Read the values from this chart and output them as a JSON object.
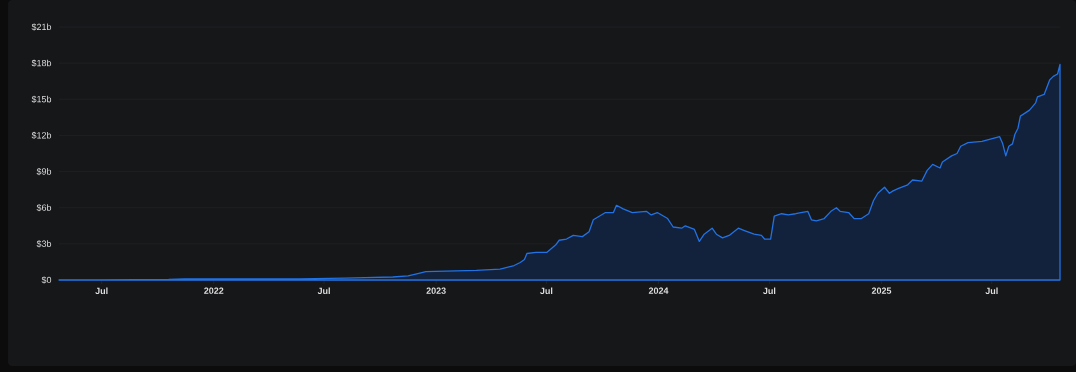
{
  "chart_data": {
    "type": "area",
    "x": [
      "2021-04-22",
      "2021-06-28",
      "2021-10-19",
      "2021-11-14",
      "2022-01-01",
      "2022-05-22",
      "2022-08-04",
      "2022-09-06",
      "2022-10-22",
      "2022-11-16",
      "2022-12-07",
      "2022-12-15",
      "2023-03-08",
      "2023-04-16",
      "2023-05-09",
      "2023-05-19",
      "2023-05-26",
      "2023-05-30",
      "2023-06-14",
      "2023-07-02",
      "2023-07-16",
      "2023-07-22",
      "2023-08-03",
      "2023-08-14",
      "2023-08-29",
      "2023-09-09",
      "2023-09-16",
      "2023-10-06",
      "2023-10-19",
      "2023-10-24",
      "2023-11-04",
      "2023-11-19",
      "2023-12-12",
      "2023-12-20",
      "2023-12-30",
      "2024-01-16",
      "2024-01-25",
      "2024-02-08",
      "2024-02-14",
      "2024-02-29",
      "2024-03-08",
      "2024-03-16",
      "2024-03-29",
      "2024-04-05",
      "2024-04-15",
      "2024-04-26",
      "2024-05-11",
      "2024-05-21",
      "2024-06-06",
      "2024-06-18",
      "2024-06-23",
      "2024-07-03",
      "2024-07-09",
      "2024-07-21",
      "2024-08-01",
      "2024-08-13",
      "2024-09-02",
      "2024-09-08",
      "2024-09-16",
      "2024-09-29",
      "2024-10-10",
      "2024-10-19",
      "2024-10-25",
      "2024-11-08",
      "2024-11-17",
      "2024-11-29",
      "2024-12-11",
      "2024-12-19",
      "2024-12-26",
      "2025-01-06",
      "2025-01-14",
      "2025-01-20",
      "2025-01-29",
      "2025-02-13",
      "2025-02-21",
      "2025-03-08",
      "2025-03-17",
      "2025-03-26",
      "2025-04-07",
      "2025-04-11",
      "2025-04-26",
      "2025-05-05",
      "2025-05-11",
      "2025-05-23",
      "2025-06-15",
      "2025-07-14",
      "2025-07-19",
      "2025-07-24",
      "2025-07-29",
      "2025-08-04",
      "2025-08-08",
      "2025-08-13",
      "2025-08-17",
      "2025-09-01",
      "2025-09-11",
      "2025-09-14",
      "2025-09-25",
      "2025-10-04",
      "2025-10-10",
      "2025-10-17",
      "2025-10-21"
    ],
    "values": [
      0,
      0,
      0.05,
      0.1,
      0.1,
      0.1,
      0.15,
      0.2,
      0.25,
      0.35,
      0.6,
      0.7,
      0.8,
      0.9,
      1.2,
      1.45,
      1.7,
      2.2,
      2.3,
      2.3,
      2.9,
      3.3,
      3.4,
      3.7,
      3.6,
      4.0,
      5.0,
      5.6,
      5.6,
      6.2,
      5.9,
      5.6,
      5.7,
      5.4,
      5.6,
      5.1,
      4.4,
      4.3,
      4.5,
      4.2,
      3.2,
      3.8,
      4.3,
      3.8,
      3.5,
      3.7,
      4.3,
      4.1,
      3.8,
      3.7,
      3.4,
      3.4,
      5.3,
      5.5,
      5.4,
      5.5,
      5.7,
      5.0,
      4.9,
      5.1,
      5.7,
      6.0,
      5.7,
      5.6,
      5.1,
      5.1,
      5.5,
      6.6,
      7.2,
      7.7,
      7.2,
      7.4,
      7.6,
      7.9,
      8.3,
      8.2,
      9.1,
      9.6,
      9.3,
      9.8,
      10.3,
      10.5,
      11.1,
      11.4,
      11.5,
      11.9,
      11.3,
      10.3,
      11.1,
      11.3,
      12.1,
      12.6,
      13.6,
      14.1,
      14.7,
      15.2,
      15.4,
      16.6,
      16.9,
      17.1,
      17.9
    ],
    "color": "#2172e5",
    "xlim": [
      "2021-04-22",
      "2025-10-21"
    ],
    "xticks": [
      {
        "value": "2021-07-01",
        "label": "Jul"
      },
      {
        "value": "2022-01-01",
        "label": "2022"
      },
      {
        "value": "2022-07-01",
        "label": "Jul"
      },
      {
        "value": "2023-01-01",
        "label": "2023"
      },
      {
        "value": "2023-07-01",
        "label": "Jul"
      },
      {
        "value": "2024-01-01",
        "label": "2024"
      },
      {
        "value": "2024-07-01",
        "label": "Jul"
      },
      {
        "value": "2025-01-01",
        "label": "2025"
      },
      {
        "value": "2025-07-01",
        "label": "Jul"
      }
    ],
    "ylim": [
      0,
      21
    ],
    "yticks": [
      {
        "value": 0,
        "label": "$0"
      },
      {
        "value": 3,
        "label": "$3b"
      },
      {
        "value": 6,
        "label": "$6b"
      },
      {
        "value": 9,
        "label": "$9b"
      },
      {
        "value": 12,
        "label": "$12b"
      },
      {
        "value": 15,
        "label": "$15b"
      },
      {
        "value": 18,
        "label": "$18b"
      },
      {
        "value": 21,
        "label": "$21b"
      }
    ],
    "grid": "y"
  }
}
